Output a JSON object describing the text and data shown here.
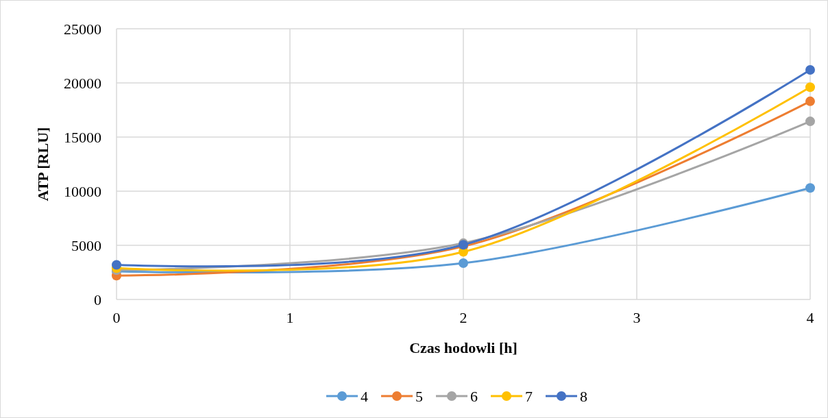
{
  "chart_data": {
    "type": "line",
    "xlabel": "Czas hodowli [h]",
    "ylabel": "ATP [RLU]",
    "x": [
      0,
      2,
      4
    ],
    "xlim": [
      0,
      4
    ],
    "xticks": [
      0,
      1,
      2,
      3,
      4
    ],
    "ylim": [
      0,
      25000
    ],
    "yticks": [
      0,
      5000,
      10000,
      15000,
      20000,
      25000
    ],
    "grid": true,
    "legend": "bottom",
    "marker": "circle",
    "line_style": "solid",
    "series": [
      {
        "name": "4",
        "color": "#5b9bd5",
        "values": [
          2600,
          3350,
          10300
        ]
      },
      {
        "name": "5",
        "color": "#ed7d31",
        "values": [
          2200,
          4900,
          18300
        ]
      },
      {
        "name": "6",
        "color": "#a5a5a5",
        "values": [
          2700,
          5200,
          16450
        ]
      },
      {
        "name": "7",
        "color": "#ffc000",
        "values": [
          2900,
          4400,
          19600
        ]
      },
      {
        "name": "8",
        "color": "#4472c4",
        "values": [
          3200,
          5050,
          21200
        ]
      }
    ]
  }
}
